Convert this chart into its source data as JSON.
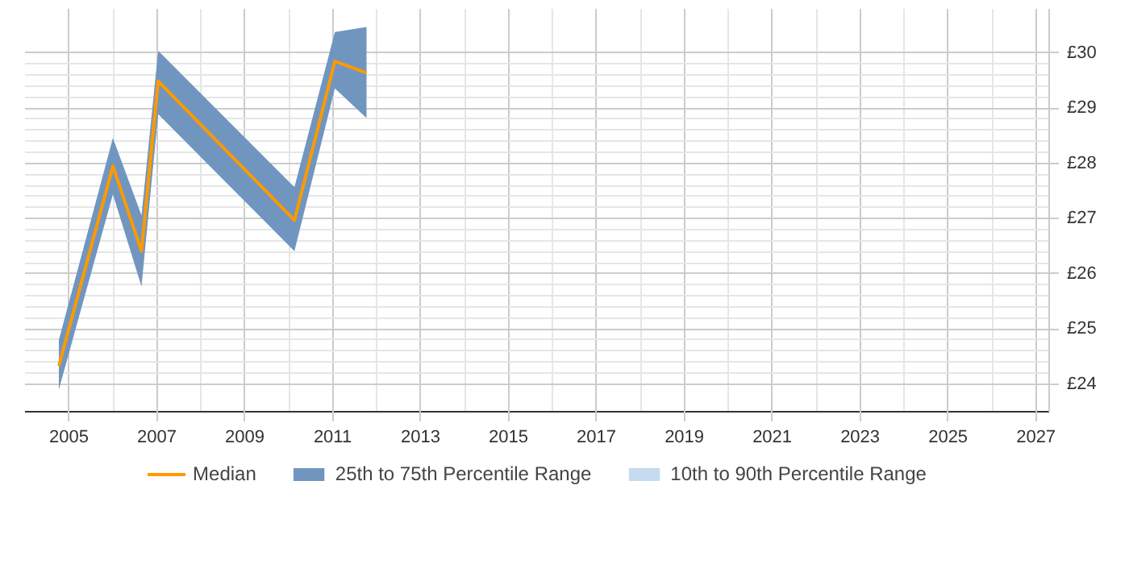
{
  "chart_data": {
    "type": "line",
    "x": [
      2004.77,
      2006.0,
      2006.65,
      2007.03,
      2010.13,
      2011.05,
      2011.77
    ],
    "series": [
      {
        "name": "Median",
        "type": "line",
        "color": "#ff9900",
        "values": [
          24.33,
          27.95,
          26.41,
          29.49,
          26.97,
          29.85,
          29.64
        ]
      },
      {
        "name": "25th to 75th Percentile Range",
        "type": "area",
        "color": "#7096c0",
        "values": [
          null,
          null,
          null,
          null,
          null,
          null,
          null
        ],
        "lower": [
          23.9,
          27.44,
          25.77,
          28.89,
          26.41,
          29.36,
          28.82
        ],
        "upper": [
          24.8,
          28.46,
          27.06,
          30.04,
          27.57,
          30.38,
          30.47
        ]
      },
      {
        "name": "10th to 90th Percentile Range",
        "type": "area",
        "color": "#c6dbef",
        "values": [
          null,
          null,
          null,
          null,
          null,
          null,
          null
        ]
      }
    ],
    "xlim": [
      2004.0,
      2027.3
    ],
    "xticks": [
      2005,
      2007,
      2009,
      2011,
      2013,
      2015,
      2017,
      2019,
      2021,
      2023,
      2025,
      2027
    ],
    "ylim": [
      23.5,
      30.8
    ],
    "yticks": [
      {
        "value": 24,
        "label": "£24"
      },
      {
        "value": 25,
        "label": "£25"
      },
      {
        "value": 26,
        "label": "£26"
      },
      {
        "value": 27,
        "label": "£27"
      },
      {
        "value": 28,
        "label": "£28"
      },
      {
        "value": 29,
        "label": "£29"
      },
      {
        "value": 30,
        "label": "£30"
      }
    ],
    "grid": true,
    "legend": "bottom",
    "line_style": "solid",
    "marker": "none"
  }
}
